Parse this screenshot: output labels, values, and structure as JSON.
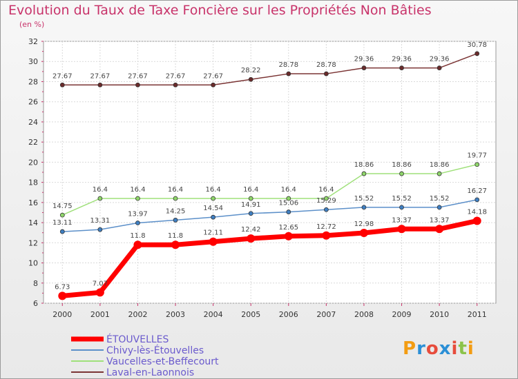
{
  "header": {
    "title": "Evolution du Taux de Taxe Foncière sur les Propriétés Non Bâties",
    "subtitle": "(en %)"
  },
  "logo": {
    "text": [
      "P",
      "r",
      "o",
      "x",
      "i",
      "t",
      "i"
    ],
    "colors": [
      "#f39c12",
      "#2b8fd6",
      "#e74c3c",
      "#2b8fd6",
      "#e74c3c",
      "#8bc34a",
      "#f39c12"
    ]
  },
  "chart_data": {
    "type": "line",
    "title": "Evolution du Taux de Taxe Foncière sur les Propriétés Non Bâties",
    "ylabel": "(en %)",
    "xlabel": "",
    "x": [
      "2000",
      "2001",
      "2002",
      "2003",
      "2004",
      "2005",
      "2006",
      "2007",
      "2008",
      "2009",
      "2010",
      "2011"
    ],
    "ylim": [
      6,
      32
    ],
    "yticks": [
      6,
      8,
      10,
      12,
      14,
      16,
      18,
      20,
      22,
      24,
      26,
      28,
      30,
      32
    ],
    "grid": true,
    "legend_position": "bottom-left",
    "series": [
      {
        "name": "ÉTOUVELLES",
        "color": "#ff0000",
        "marker": "#ff0000",
        "width": 7,
        "values": [
          6.73,
          7.07,
          11.8,
          11.8,
          12.11,
          12.42,
          12.65,
          12.72,
          12.98,
          13.37,
          13.37,
          14.18
        ],
        "labels": [
          "6.73",
          "7.07",
          "11.8",
          "11.8",
          "12.11",
          "12.42",
          "12.65",
          "12.72",
          "12.98",
          "13.37",
          "13.37",
          "14.18"
        ]
      },
      {
        "name": "Chivy-lès-Étouvelles",
        "color": "#5b8fc9",
        "marker": "#3f7fc2",
        "width": 1.5,
        "values": [
          13.11,
          13.31,
          13.97,
          14.25,
          14.54,
          14.91,
          15.06,
          15.29,
          15.52,
          15.52,
          15.52,
          16.27
        ],
        "labels": [
          "13.11",
          "13.31",
          "13.97",
          "14.25",
          "14.54",
          "14.91",
          "15.06",
          "15.29",
          "15.52",
          "15.52",
          "15.52",
          "16.27"
        ]
      },
      {
        "name": "Vaucelles-et-Beffecourt",
        "color": "#9fe07a",
        "marker": "#8fd66a",
        "width": 1.5,
        "values": [
          14.75,
          16.4,
          16.4,
          16.4,
          16.4,
          16.4,
          16.4,
          16.4,
          18.86,
          18.86,
          18.86,
          19.77
        ],
        "labels": [
          "14.75",
          "16.4",
          "16.4",
          "16.4",
          "16.4",
          "16.4",
          "16.4",
          "16.4",
          "18.86",
          "18.86",
          "18.86",
          "19.77"
        ]
      },
      {
        "name": "Laval-en-Laonnois",
        "color": "#7a3333",
        "marker": "#6b2b2b",
        "width": 1.5,
        "values": [
          27.67,
          27.67,
          27.67,
          27.67,
          27.67,
          28.22,
          28.78,
          28.78,
          29.36,
          29.36,
          29.36,
          30.78
        ],
        "labels": [
          "27.67",
          "27.67",
          "27.67",
          "27.67",
          "27.67",
          "28.22",
          "28.78",
          "28.78",
          "29.36",
          "29.36",
          "29.36",
          "30.78"
        ]
      }
    ]
  }
}
